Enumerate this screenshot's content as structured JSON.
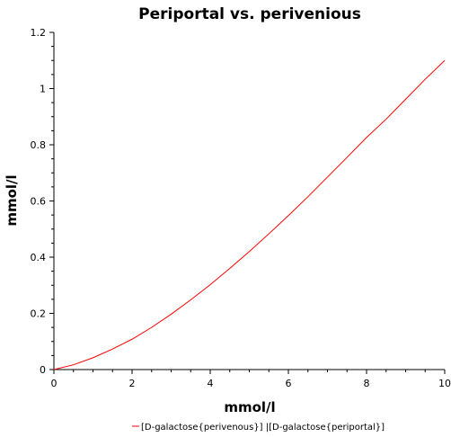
{
  "chart_data": {
    "type": "line",
    "title": "Periportal vs. perivenious",
    "xlabel": "mmol/l",
    "ylabel": "mmol/l",
    "xlim": [
      0,
      10
    ],
    "ylim": [
      0,
      1.2
    ],
    "x_ticks": [
      "0",
      "2",
      "4",
      "6",
      "8",
      "10"
    ],
    "y_ticks": [
      "0",
      "0.2",
      "0.4",
      "0.6",
      "0.8",
      "1",
      "1.2"
    ],
    "grid": false,
    "legend_position": "bottom",
    "series": [
      {
        "name": "[D-galactose{perivenous}] |[D-galactose{periportal}]",
        "color": "#ff0000",
        "x": [
          0,
          0.5,
          1,
          1.5,
          2,
          2.5,
          3,
          3.5,
          4,
          4.5,
          5,
          5.5,
          6,
          6.5,
          7,
          7.5,
          8,
          8.5,
          9,
          9.5,
          10
        ],
        "y": [
          0,
          0.017,
          0.042,
          0.073,
          0.108,
          0.15,
          0.197,
          0.248,
          0.302,
          0.36,
          0.42,
          0.483,
          0.548,
          0.615,
          0.685,
          0.755,
          0.826,
          0.891,
          0.962,
          1.033,
          1.1
        ]
      }
    ]
  }
}
